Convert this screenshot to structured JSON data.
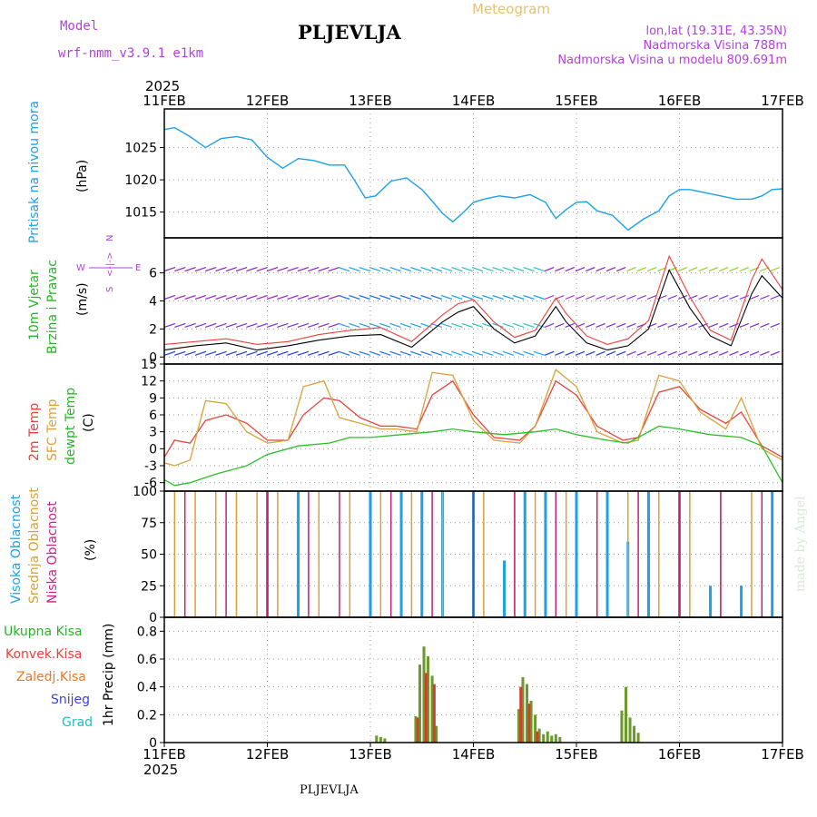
{
  "header": {
    "model_label": "Model",
    "model_name": "wrf-nmm_v3.9.1  e1km",
    "title": "PLJEVLJA",
    "meteogram": "Meteogram",
    "lonlat": "lon,lat (19.31E, 43.35N)",
    "altitude": "Nadmorska Visina 788m",
    "model_altitude": "Nadmorska Visina u modelu 809.691m",
    "year_top": "2025",
    "year_bottom": "2025",
    "footer": "PLJEVLJA",
    "credit": "made by Angel"
  },
  "colors": {
    "pressure": "#1ea0e6",
    "t2m": "#e8423a",
    "sfc": "#d9a13a",
    "dewpt": "#28c028",
    "purple": "#b040e0",
    "green": "#28b428",
    "magenta": "#d0208a",
    "high_cloud": "#1ea0e6",
    "mid_cloud": "#d9a13a",
    "low_cloud": "#c0207a",
    "total_precip": "#6a9a2a",
    "conv_precip": "#d04030",
    "freezing": "#f07820",
    "snow": "#4040e0",
    "hail": "#20c0c0"
  },
  "panels": {
    "pressure": {
      "lines": [
        "Pritisak na nivou mora"
      ],
      "unit": "(hPa)"
    },
    "wind": {
      "lines": [
        "10m Vjetar",
        "Brzina i Pravac"
      ],
      "unit": "(m/s)",
      "compass_n": "N",
      "compass_s": "S",
      "compass_w": "W",
      "compass_e": "E",
      "compass_arrow": "<-|->"
    },
    "temp": {
      "line1": "2m Temp",
      "line2": "SFC Temp",
      "line3": "dewpt Temp",
      "unit": "(C)"
    },
    "cloud": {
      "line1": "Visoka Oblacnost",
      "line2": "Srednja Oblacnost",
      "line3": "Niska Oblacnost",
      "unit": "(%)"
    },
    "precip": {
      "unit": "1hr Precip (mm)",
      "legend": [
        "Ukupna Kisa",
        "Konvek.Kisa",
        "Zaledj.Kisa",
        "Snijeg",
        "Grad"
      ]
    }
  },
  "chart_data": [
    {
      "type": "line",
      "panel": "pressure",
      "x_labels": [
        "11FEB",
        "12FEB",
        "13FEB",
        "14FEB",
        "15FEB",
        "16FEB",
        "17FEB"
      ],
      "xlim": [
        0,
        6
      ],
      "ylim": [
        1011,
        1031
      ],
      "yticks": [
        1015,
        1020,
        1025
      ],
      "grid": true,
      "series": [
        {
          "x": [
            0,
            0.1,
            0.25,
            0.4,
            0.55,
            0.7,
            0.85,
            1.0,
            1.15,
            1.3,
            1.45,
            1.6,
            1.75,
            1.85,
            1.95,
            2.05,
            2.2,
            2.35,
            2.5,
            2.6,
            2.7,
            2.8,
            2.9,
            3.0,
            3.1,
            3.25,
            3.4,
            3.55,
            3.7,
            3.8,
            3.9,
            4.0,
            4.1,
            4.2,
            4.35,
            4.5,
            4.65,
            4.8,
            4.9,
            5.0,
            5.1,
            5.25,
            5.4,
            5.55,
            5.7,
            5.8,
            5.9,
            6.0
          ],
          "values": [
            1027.8,
            1028.1,
            1026.7,
            1025.0,
            1026.4,
            1026.7,
            1026.2,
            1023.5,
            1021.8,
            1023.3,
            1023.0,
            1022.3,
            1022.3,
            1019.8,
            1017.2,
            1017.5,
            1019.8,
            1020.3,
            1018.5,
            1016.7,
            1014.8,
            1013.5,
            1014.9,
            1016.5,
            1017.0,
            1017.5,
            1017.2,
            1017.7,
            1016.5,
            1014.0,
            1015.4,
            1016.5,
            1016.6,
            1015.2,
            1014.5,
            1012.2,
            1013.9,
            1015.2,
            1017.5,
            1018.5,
            1018.5,
            1018.0,
            1017.5,
            1017.0,
            1017.0,
            1017.5,
            1018.5,
            1018.6
          ]
        }
      ]
    },
    {
      "type": "line",
      "panel": "wind",
      "x_labels": [
        "11FEB",
        "12FEB",
        "13FEB",
        "14FEB",
        "15FEB",
        "16FEB",
        "17FEB"
      ],
      "xlim": [
        0,
        6
      ],
      "ylim": [
        -0.5,
        8.5
      ],
      "yticks": [
        0,
        2,
        4,
        6
      ],
      "grid": true,
      "series": [
        {
          "name": "wind speed",
          "x": [
            0,
            0.3,
            0.6,
            0.9,
            1.2,
            1.5,
            1.8,
            2.1,
            2.4,
            2.7,
            2.85,
            3.0,
            3.2,
            3.4,
            3.6,
            3.8,
            3.9,
            4.1,
            4.3,
            4.5,
            4.7,
            4.9,
            5.1,
            5.3,
            5.5,
            5.7,
            5.8,
            6.0
          ],
          "values": [
            0.5,
            0.8,
            1.0,
            0.5,
            0.8,
            1.2,
            1.5,
            1.6,
            0.7,
            2.5,
            3.2,
            3.6,
            2.0,
            1.0,
            1.5,
            3.6,
            2.5,
            1.0,
            0.5,
            0.8,
            2.0,
            6.2,
            3.5,
            1.5,
            0.8,
            4.5,
            5.8,
            4.2
          ]
        },
        {
          "name": "gust",
          "x": [
            0,
            0.3,
            0.6,
            0.9,
            1.2,
            1.5,
            1.8,
            2.1,
            2.4,
            2.7,
            2.85,
            3.0,
            3.2,
            3.4,
            3.6,
            3.8,
            3.9,
            4.1,
            4.3,
            4.5,
            4.7,
            4.9,
            5.1,
            5.3,
            5.5,
            5.7,
            5.8,
            6.0
          ],
          "values": [
            0.9,
            1.1,
            1.3,
            0.9,
            1.1,
            1.6,
            1.9,
            2.1,
            1.1,
            3.0,
            3.8,
            4.1,
            2.5,
            1.4,
            1.9,
            4.2,
            3.1,
            1.5,
            0.9,
            1.3,
            2.6,
            7.2,
            4.3,
            1.9,
            1.2,
            5.5,
            7.0,
            4.8
          ]
        }
      ]
    },
    {
      "type": "line",
      "panel": "temp",
      "x_labels": [
        "11FEB",
        "12FEB",
        "13FEB",
        "14FEB",
        "15FEB",
        "16FEB",
        "17FEB"
      ],
      "xlim": [
        0,
        6
      ],
      "ylim": [
        -7.5,
        15
      ],
      "yticks": [
        -6,
        -3,
        0,
        3,
        6,
        9,
        12,
        15
      ],
      "grid": true,
      "series": [
        {
          "name": "2m Temp",
          "x": [
            0,
            0.1,
            0.25,
            0.4,
            0.6,
            0.8,
            1.0,
            1.2,
            1.35,
            1.55,
            1.7,
            1.9,
            2.1,
            2.25,
            2.45,
            2.6,
            2.8,
            3.0,
            3.2,
            3.45,
            3.6,
            3.8,
            4.0,
            4.2,
            4.45,
            4.6,
            4.8,
            5.0,
            5.2,
            5.45,
            5.6,
            5.8,
            6.0
          ],
          "values": [
            -1.5,
            1.5,
            1.0,
            5.0,
            6.0,
            4.5,
            1.5,
            1.5,
            6.0,
            9.0,
            8.5,
            5.5,
            4.0,
            4.0,
            3.5,
            9.5,
            12.0,
            6.0,
            2.0,
            1.5,
            4.0,
            12.0,
            9.5,
            4.0,
            1.5,
            2.0,
            10.0,
            11.0,
            7.0,
            4.5,
            6.5,
            0.5,
            -1.5
          ]
        },
        {
          "name": "SFC Temp",
          "x": [
            0,
            0.1,
            0.25,
            0.4,
            0.6,
            0.8,
            1.0,
            1.2,
            1.35,
            1.55,
            1.7,
            1.9,
            2.1,
            2.25,
            2.45,
            2.6,
            2.8,
            3.0,
            3.2,
            3.45,
            3.6,
            3.8,
            4.0,
            4.2,
            4.45,
            4.6,
            4.8,
            5.0,
            5.2,
            5.45,
            5.6,
            5.8,
            6.0
          ],
          "values": [
            -2.5,
            -3.0,
            -2.0,
            8.5,
            8.0,
            3.0,
            1.0,
            1.5,
            11.0,
            12.0,
            5.5,
            4.5,
            3.5,
            3.5,
            3.0,
            13.5,
            13.0,
            5.0,
            1.5,
            1.0,
            4.0,
            14.0,
            11.0,
            3.0,
            1.0,
            1.5,
            13.0,
            12.0,
            6.5,
            3.5,
            9.0,
            0.0,
            -2.0
          ]
        },
        {
          "name": "dewpt Temp",
          "x": [
            0,
            0.1,
            0.25,
            0.5,
            0.8,
            1.0,
            1.3,
            1.6,
            1.8,
            2.0,
            2.3,
            2.6,
            2.8,
            3.0,
            3.3,
            3.6,
            3.8,
            4.0,
            4.3,
            4.5,
            4.8,
            5.0,
            5.3,
            5.6,
            5.8,
            6.0
          ],
          "values": [
            -5.5,
            -6.5,
            -6.0,
            -4.5,
            -3.0,
            -1.0,
            0.5,
            1.0,
            2.0,
            2.0,
            2.5,
            3.0,
            3.5,
            3.0,
            2.5,
            3.0,
            3.5,
            2.5,
            1.5,
            1.0,
            4.0,
            3.5,
            2.5,
            2.0,
            0.5,
            -6.0
          ]
        }
      ]
    },
    {
      "type": "bar",
      "panel": "cloud",
      "x_labels": [
        "11FEB",
        "12FEB",
        "13FEB",
        "14FEB",
        "15FEB",
        "16FEB",
        "17FEB"
      ],
      "xlim": [
        0,
        6
      ],
      "ylim": [
        0,
        100
      ],
      "yticks": [
        0,
        25,
        50,
        75,
        100
      ],
      "grid": true,
      "series": [
        {
          "name": "Visoka Oblacnost",
          "x": [
            1.0,
            1.3,
            2.0,
            2.3,
            2.5,
            2.7,
            3.0,
            3.3,
            3.5,
            3.7,
            4.0,
            4.3,
            4.5,
            4.7,
            5.0,
            5.3,
            5.6,
            5.9
          ],
          "values": [
            100,
            100,
            100,
            100,
            100,
            100,
            100,
            45,
            100,
            100,
            100,
            100,
            60,
            100,
            100,
            25,
            25,
            100
          ]
        },
        {
          "name": "Srednja Oblacnost",
          "x": [
            0.1,
            0.3,
            0.5,
            0.7,
            0.9,
            1.1,
            1.5,
            1.8,
            2.1,
            2.4,
            2.7,
            3.1,
            3.4,
            3.6,
            3.9,
            4.2,
            4.5,
            4.8,
            5.1,
            5.4,
            5.7
          ],
          "values": [
            100,
            100,
            100,
            100,
            100,
            100,
            100,
            100,
            100,
            100,
            100,
            100,
            100,
            100,
            100,
            100,
            100,
            100,
            100,
            100,
            100
          ]
        },
        {
          "name": "Niska Oblacnost",
          "x": [
            0.2,
            0.6,
            1.0,
            1.4,
            1.7,
            2.2,
            2.6,
            3.0,
            3.4,
            3.8,
            4.2,
            4.6,
            5.0,
            5.4,
            5.8
          ],
          "values": [
            100,
            100,
            100,
            100,
            100,
            100,
            100,
            100,
            100,
            100,
            100,
            100,
            100,
            100,
            100
          ]
        }
      ]
    },
    {
      "type": "bar",
      "panel": "precip",
      "x_labels": [
        "11FEB",
        "12FEB",
        "13FEB",
        "14FEB",
        "15FEB",
        "16FEB",
        "17FEB"
      ],
      "xlim": [
        0,
        6
      ],
      "ylim": [
        0,
        0.9
      ],
      "yticks": [
        0,
        0.2,
        0.4,
        0.6,
        0.8
      ],
      "grid": true,
      "series": [
        {
          "name": "Ukupna Kisa",
          "x": [
            2.06,
            2.1,
            2.14,
            2.44,
            2.48,
            2.52,
            2.56,
            2.6,
            2.64,
            3.44,
            3.48,
            3.52,
            3.56,
            3.6,
            3.64,
            3.68,
            3.72,
            3.76,
            3.8,
            3.84,
            4.44,
            4.48,
            4.52,
            4.56,
            4.6
          ],
          "values": [
            0.05,
            0.04,
            0.03,
            0.19,
            0.56,
            0.69,
            0.62,
            0.48,
            0.12,
            0.24,
            0.47,
            0.42,
            0.3,
            0.2,
            0.1,
            0.06,
            0.08,
            0.05,
            0.06,
            0.04,
            0.23,
            0.4,
            0.18,
            0.12,
            0.07
          ]
        },
        {
          "name": "Konvek.Kisa",
          "x": [
            2.46,
            2.54,
            2.62,
            3.46,
            3.54,
            3.62
          ],
          "values": [
            0.18,
            0.5,
            0.42,
            0.4,
            0.28,
            0.08
          ]
        }
      ]
    }
  ]
}
